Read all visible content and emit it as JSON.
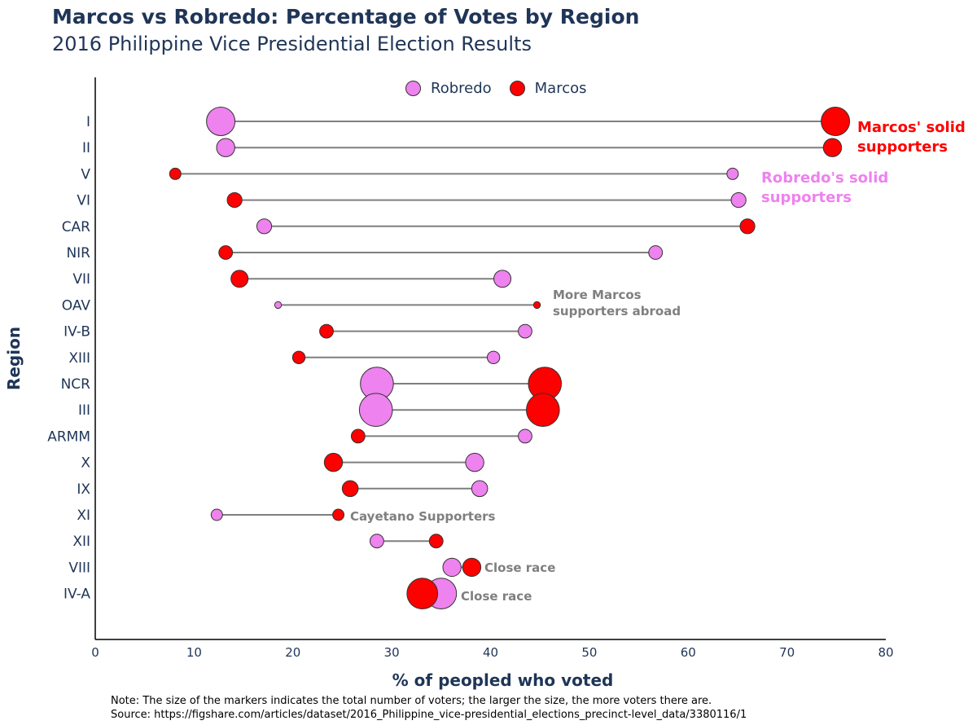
{
  "title": "Marcos vs Robredo: Percentage of Votes by Region",
  "subtitle": "2016 Philippine Vice Presidential Election Results",
  "note_lines": [
    "Note: The size of the markers indicates the total number of voters; the larger the size, the more voters there are.",
    "Source: https://figshare.com/articles/dataset/2016_Philippine_vice-presidential_elections_precinct-level_data/3380116/1"
  ],
  "legend": [
    {
      "label": "Robredo",
      "color": "#ee82ee"
    },
    {
      "label": "Marcos",
      "color": "#ff0000"
    }
  ],
  "annotations": {
    "marcos_solid": [
      "Marcos' solid",
      "supporters"
    ],
    "robredo_solid": [
      "Robredo's solid",
      "supporters"
    ],
    "abroad": [
      "More Marcos",
      "supporters abroad"
    ],
    "cayetano": "Cayetano Supporters",
    "close_viii": "Close race",
    "close_iva": "Close race"
  },
  "colors": {
    "robredo": "#ee82ee",
    "marcos": "#ff0000",
    "line": "#7f7f7f",
    "text": "#1f3557"
  },
  "chart_data": {
    "type": "scatter",
    "subtype": "dumbbell",
    "xlabel": "% of peopled who voted",
    "ylabel": "Region",
    "xlim": [
      0,
      80
    ],
    "xticks": [
      0,
      10,
      20,
      30,
      40,
      50,
      60,
      70,
      80
    ],
    "categories": [
      "I",
      "II",
      "V",
      "VI",
      "CAR",
      "NIR",
      "VII",
      "OAV",
      "IV-B",
      "XIII",
      "NCR",
      "III",
      "ARMM",
      "X",
      "IX",
      "XI",
      "XII",
      "VIII",
      "IV-A"
    ],
    "series": [
      {
        "name": "Robredo",
        "values": [
          12.7,
          13.2,
          64.5,
          65.1,
          17.1,
          56.7,
          41.2,
          18.5,
          43.5,
          40.3,
          28.5,
          28.4,
          43.5,
          38.4,
          38.9,
          12.3,
          28.5,
          36.1,
          35.0
        ]
      },
      {
        "name": "Marcos",
        "values": [
          74.9,
          74.6,
          8.1,
          14.1,
          66.0,
          13.2,
          14.6,
          44.7,
          23.4,
          20.6,
          45.5,
          45.3,
          26.6,
          24.1,
          25.8,
          24.6,
          34.5,
          38.1,
          33.1
        ]
      }
    ],
    "marker_size": [
      1.0,
      0.55,
      0.25,
      0.4,
      0.4,
      0.35,
      0.5,
      0.05,
      0.35,
      0.3,
      1.2,
      1.2,
      0.35,
      0.55,
      0.45,
      0.25,
      0.35,
      0.55,
      1.1
    ],
    "legend_position": "top-center",
    "grid": false
  }
}
